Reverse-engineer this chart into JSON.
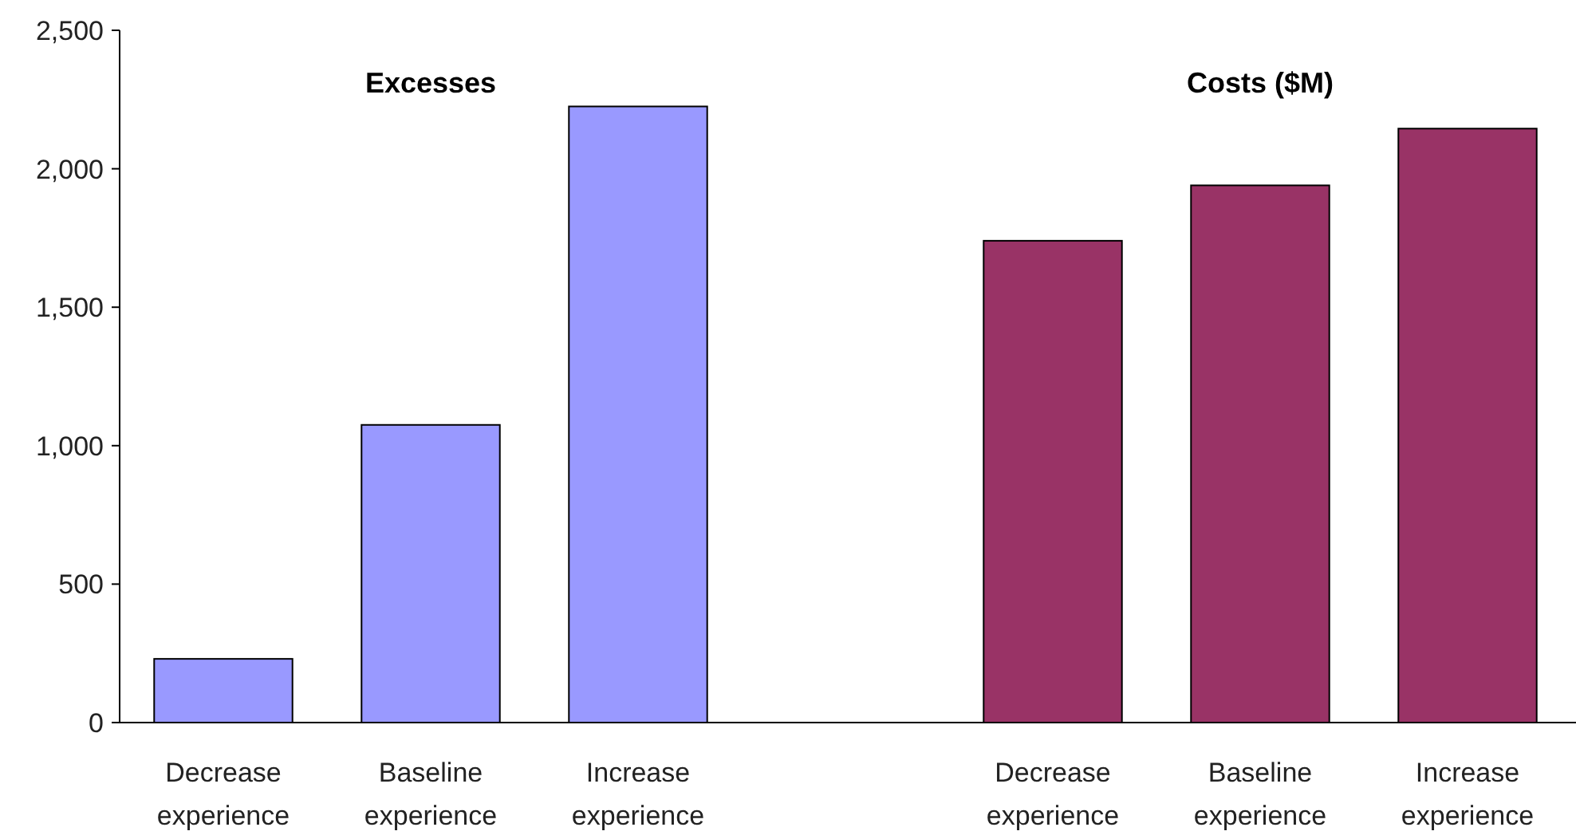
{
  "chart_data": {
    "type": "bar",
    "categories": [
      "Decrease experience",
      "Baseline experience",
      "Increase experience",
      null,
      "Decrease experience",
      "Baseline experience",
      "Increase experience"
    ],
    "values": [
      230,
      1075,
      2225,
      null,
      1740,
      1940,
      2145
    ],
    "colors": [
      "#9999ff",
      "#9999ff",
      "#9999ff",
      null,
      "#993366",
      "#993366",
      "#993366"
    ],
    "annotations": [
      "Excesses",
      "Costs ($M)"
    ],
    "ylim": [
      0,
      2500
    ],
    "yticks": [
      0,
      {
        "value": 500,
        "label": "500"
      },
      {
        "value": 1000,
        "label": "1,000"
      },
      {
        "value": 1500,
        "label": "1,500"
      },
      {
        "value": 2000,
        "label": "2,000"
      },
      {
        "value": 2500,
        "label": "2,500"
      }
    ],
    "grid": false
  }
}
